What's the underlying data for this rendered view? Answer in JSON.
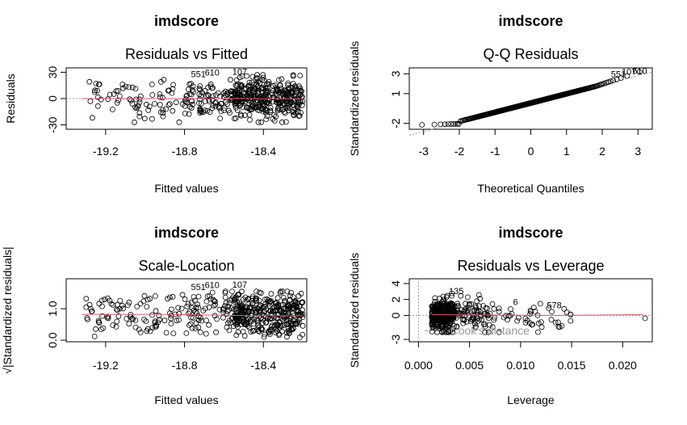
{
  "chart_data": [
    {
      "type": "scatter",
      "main": "imdscore",
      "title": "Residuals vs Fitted",
      "xlabel": "Fitted values",
      "ylabel": "Residuals",
      "xlim": [
        -19.4,
        -18.18
      ],
      "ylim": [
        -35,
        35
      ],
      "xticks": [
        "-19.2",
        "-18.8",
        "-18.4"
      ],
      "xtick_values": [
        -19.2,
        -18.8,
        -18.4
      ],
      "yticks": [
        "-30",
        "0",
        "30"
      ],
      "ytick_values": [
        -30,
        0,
        30
      ],
      "x_cluster": [
        -18.55,
        -18.2
      ],
      "y_spread": [
        -28,
        32
      ],
      "outlier_labels": [
        {
          "text": "551",
          "x": -18.73,
          "y": 28
        },
        {
          "text": "610",
          "x": -18.66,
          "y": 30
        },
        {
          "text": "107",
          "x": -18.52,
          "y": 31
        }
      ],
      "smooth": [
        [
          -19.32,
          0
        ],
        [
          -18.5,
          0
        ],
        [
          -18.2,
          -0.5
        ]
      ]
    },
    {
      "type": "scatter",
      "main": "imdscore",
      "title": "Q-Q Residuals",
      "xlabel": "Theoretical Quantiles",
      "ylabel": "Standardized residuals",
      "xlim": [
        -3.4,
        3.4
      ],
      "ylim": [
        -2.6,
        3.6
      ],
      "xticks": [
        "-3",
        "-2",
        "-1",
        "0",
        "1",
        "2",
        "3"
      ],
      "xtick_values": [
        -3,
        -2,
        -1,
        0,
        1,
        2,
        3
      ],
      "yticks": [
        "-2",
        "1",
        "3"
      ],
      "ytick_values": [
        -2,
        1,
        3
      ],
      "outlier_labels": [
        {
          "text": "551",
          "x": 2.45,
          "y": 3.0
        },
        {
          "text": "107",
          "x": 2.75,
          "y": 3.25
        },
        {
          "text": "610",
          "x": 3.05,
          "y": 3.3
        }
      ]
    },
    {
      "type": "scatter",
      "main": "imdscore",
      "title": "Scale-Location",
      "xlabel": "Fitted values",
      "ylabel": "√|Standardized residuals|",
      "xlim": [
        -19.4,
        -18.18
      ],
      "ylim": [
        -0.05,
        1.95
      ],
      "xticks": [
        "-19.2",
        "-18.8",
        "-18.4"
      ],
      "xtick_values": [
        -19.2,
        -18.8,
        -18.4
      ],
      "yticks": [
        "0.0",
        "1.0"
      ],
      "ytick_values": [
        0.0,
        1.0
      ],
      "outlier_labels": [
        {
          "text": "551",
          "x": -18.73,
          "y": 1.7
        },
        {
          "text": "610",
          "x": -18.66,
          "y": 1.76
        },
        {
          "text": "107",
          "x": -18.52,
          "y": 1.77
        }
      ],
      "smooth": [
        [
          -19.32,
          0.82
        ],
        [
          -18.9,
          0.82
        ],
        [
          -18.7,
          0.8
        ],
        [
          -18.5,
          0.78
        ],
        [
          -18.2,
          0.77
        ]
      ]
    },
    {
      "type": "scatter",
      "main": "imdscore",
      "title": "Residuals vs Leverage",
      "xlabel": "Leverage",
      "ylabel": "Standardized residuals",
      "xlim": [
        -0.0009,
        0.0229
      ],
      "ylim": [
        -3.3,
        4.6
      ],
      "xticks": [
        "0.000",
        "0.005",
        "0.010",
        "0.015",
        "0.020"
      ],
      "xtick_values": [
        0,
        0.005,
        0.01,
        0.015,
        0.02
      ],
      "yticks": [
        "-3",
        "0",
        "2",
        "4"
      ],
      "ytick_values": [
        -3,
        0,
        2,
        4
      ],
      "outlier_labels": [
        {
          "text": "135",
          "x": 0.0037,
          "y": 3.1
        },
        {
          "text": "578",
          "x": 0.0133,
          "y": 1.3
        },
        {
          "text": "6",
          "x": 0.0095,
          "y": 1.7
        }
      ],
      "cooks_label": "Cook's distance",
      "smooth": [
        [
          0.0013,
          0.1
        ],
        [
          0.005,
          0.05
        ],
        [
          0.0135,
          0.0
        ],
        [
          0.022,
          0.1
        ]
      ]
    }
  ]
}
